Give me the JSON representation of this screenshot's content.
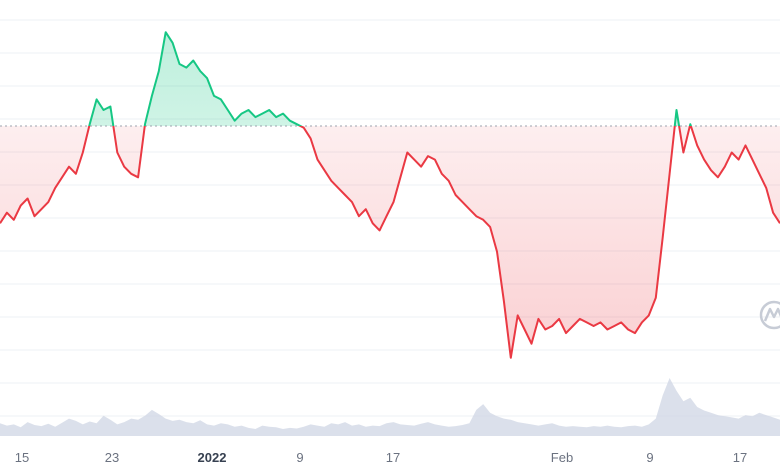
{
  "chart_data": {
    "type": "line",
    "subtype": "price-with-baseline-and-volume",
    "colors": {
      "up": "#16c784",
      "down": "#ea3943",
      "volume": "#cfd6e4",
      "grid": "#eef0f4",
      "baseline": "#9ca3af"
    },
    "baseline_fraction": 0.26,
    "x_ticks": [
      {
        "label": "15"
      },
      {
        "label": "23"
      },
      {
        "label": "2022",
        "bold": true
      },
      {
        "label": "9"
      },
      {
        "label": "17"
      },
      {
        "label": "Feb"
      },
      {
        "label": "9"
      },
      {
        "label": "17"
      }
    ],
    "price_series": [
      0.42,
      0.45,
      0.43,
      0.47,
      0.49,
      0.44,
      0.46,
      0.48,
      0.52,
      0.55,
      0.58,
      0.56,
      0.62,
      0.7,
      0.77,
      0.74,
      0.75,
      0.62,
      0.58,
      0.56,
      0.55,
      0.7,
      0.78,
      0.85,
      0.96,
      0.93,
      0.87,
      0.86,
      0.88,
      0.85,
      0.83,
      0.78,
      0.77,
      0.74,
      0.71,
      0.73,
      0.74,
      0.72,
      0.73,
      0.74,
      0.72,
      0.73,
      0.71,
      0.7,
      0.69,
      0.66,
      0.6,
      0.57,
      0.54,
      0.52,
      0.5,
      0.48,
      0.44,
      0.46,
      0.42,
      0.4,
      0.44,
      0.48,
      0.55,
      0.62,
      0.6,
      0.58,
      0.61,
      0.6,
      0.56,
      0.54,
      0.5,
      0.48,
      0.46,
      0.44,
      0.43,
      0.41,
      0.34,
      0.2,
      0.04,
      0.16,
      0.12,
      0.08,
      0.15,
      0.12,
      0.13,
      0.15,
      0.11,
      0.13,
      0.15,
      0.14,
      0.13,
      0.14,
      0.12,
      0.13,
      0.14,
      0.12,
      0.11,
      0.14,
      0.16,
      0.21,
      0.38,
      0.56,
      0.74,
      0.62,
      0.7,
      0.64,
      0.6,
      0.57,
      0.55,
      0.58,
      0.62,
      0.6,
      0.64,
      0.6,
      0.56,
      0.52,
      0.45,
      0.42
    ],
    "volume_series": [
      0.22,
      0.18,
      0.2,
      0.15,
      0.24,
      0.19,
      0.17,
      0.21,
      0.16,
      0.23,
      0.3,
      0.26,
      0.2,
      0.25,
      0.22,
      0.35,
      0.28,
      0.2,
      0.24,
      0.3,
      0.28,
      0.35,
      0.45,
      0.38,
      0.3,
      0.26,
      0.28,
      0.24,
      0.22,
      0.27,
      0.2,
      0.18,
      0.22,
      0.2,
      0.16,
      0.18,
      0.14,
      0.12,
      0.18,
      0.16,
      0.15,
      0.12,
      0.14,
      0.13,
      0.16,
      0.2,
      0.18,
      0.16,
      0.22,
      0.2,
      0.24,
      0.18,
      0.2,
      0.16,
      0.18,
      0.17,
      0.22,
      0.24,
      0.2,
      0.19,
      0.18,
      0.21,
      0.24,
      0.2,
      0.18,
      0.16,
      0.17,
      0.19,
      0.22,
      0.45,
      0.55,
      0.4,
      0.34,
      0.3,
      0.28,
      0.24,
      0.22,
      0.2,
      0.18,
      0.2,
      0.22,
      0.18,
      0.16,
      0.17,
      0.16,
      0.15,
      0.17,
      0.16,
      0.18,
      0.16,
      0.15,
      0.17,
      0.18,
      0.16,
      0.2,
      0.3,
      0.7,
      1.0,
      0.78,
      0.6,
      0.66,
      0.5,
      0.44,
      0.4,
      0.36,
      0.34,
      0.32,
      0.3,
      0.36,
      0.34,
      0.4,
      0.36,
      0.32,
      0.28
    ]
  }
}
